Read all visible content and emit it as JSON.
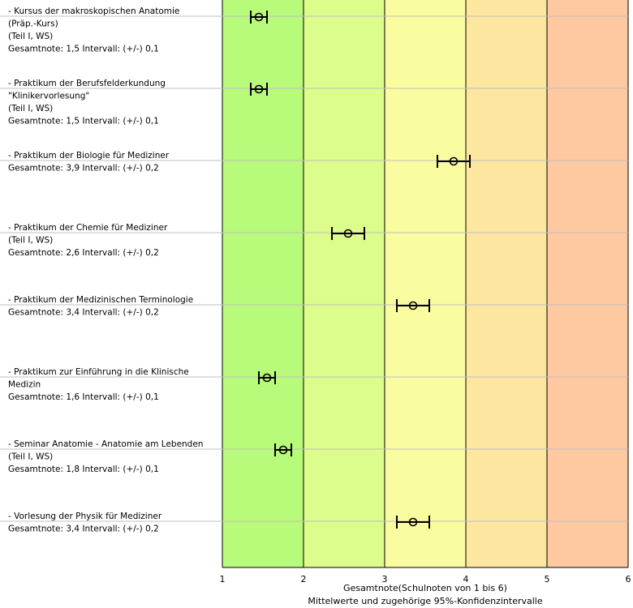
{
  "chart_data": {
    "type": "scatter",
    "xlim": [
      1,
      6
    ],
    "xticks": [
      "1",
      "2",
      "3",
      "4",
      "5",
      "6"
    ],
    "xlabel": "Gesamtnote(Schulnoten von 1 bis 6)",
    "subtitle": "Mittelwerte und zugehörige 95%-Konfidenzintervalle",
    "grade_bands": [
      {
        "from": 1,
        "to": 2,
        "color": "#b8fa7a"
      },
      {
        "from": 2,
        "to": 3,
        "color": "#dcfc8c"
      },
      {
        "from": 3,
        "to": 4,
        "color": "#fafca0"
      },
      {
        "from": 4,
        "to": 5,
        "color": "#fde6a0"
      },
      {
        "from": 5,
        "to": 6,
        "color": "#fec8a0"
      }
    ],
    "items": [
      {
        "lines": [
          "- Kursus der makroskopischen Anatomie",
          "(Präp.-Kurs)",
          "(Teil I, WS)",
          "Gesamtnote: 1,5 Intervall: (+/-) 0,1"
        ],
        "mean": 1.45,
        "ci": 0.1
      },
      {
        "lines": [
          "- Praktikum der Berufsfelderkundung",
          "\"Klinikervorlesung\"",
          "(Teil I, WS)",
          "Gesamtnote: 1,5 Intervall: (+/-) 0,1"
        ],
        "mean": 1.45,
        "ci": 0.1
      },
      {
        "lines": [
          "- Praktikum der Biologie für Mediziner",
          "Gesamtnote: 3,9 Intervall: (+/-) 0,2"
        ],
        "mean": 3.85,
        "ci": 0.2
      },
      {
        "lines": [
          "- Praktikum der Chemie für Mediziner",
          "(Teil I, WS)",
          "Gesamtnote: 2,6 Intervall: (+/-) 0,2"
        ],
        "mean": 2.55,
        "ci": 0.2
      },
      {
        "lines": [
          "- Praktikum der Medizinischen Terminologie",
          "Gesamtnote: 3,4 Intervall: (+/-) 0,2"
        ],
        "mean": 3.35,
        "ci": 0.2
      },
      {
        "lines": [
          "- Praktikum zur Einführung in die Klinische",
          "Medizin",
          "Gesamtnote: 1,6 Intervall: (+/-) 0,1"
        ],
        "mean": 1.55,
        "ci": 0.1
      },
      {
        "lines": [
          "- Seminar Anatomie - Anatomie am Lebenden",
          "(Teil I, WS)",
          "Gesamtnote: 1,8 Intervall: (+/-) 0,1"
        ],
        "mean": 1.75,
        "ci": 0.1
      },
      {
        "lines": [
          "- Vorlesung der Physik für Mediziner",
          "Gesamtnote: 3,4 Intervall: (+/-) 0,2"
        ],
        "mean": 3.35,
        "ci": 0.2
      }
    ]
  }
}
